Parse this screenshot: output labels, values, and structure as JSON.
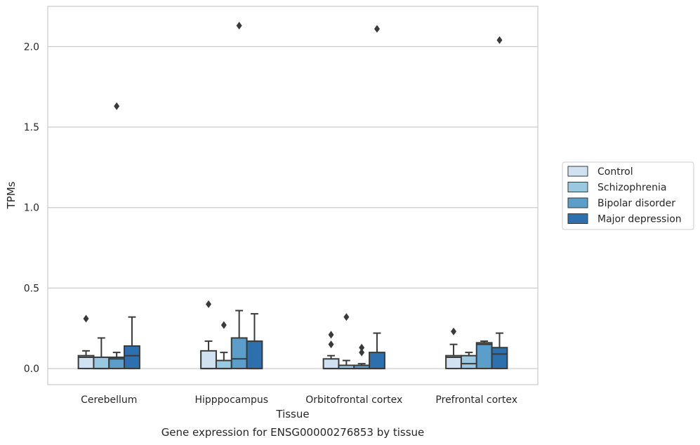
{
  "chart_data": {
    "type": "box",
    "title": "",
    "caption": "Gene expression for ENSG00000276853 by tissue",
    "xlabel": "Tissue",
    "ylabel": "TPMs",
    "ylim": [
      -0.1,
      2.25
    ],
    "yticks": [
      "0.0",
      "0.5",
      "1.0",
      "1.5",
      "2.0"
    ],
    "grid": true,
    "legend_position": "right",
    "categories": [
      "Cerebellum",
      "Hipppocampus",
      "Orbitofrontal cortex",
      "Prefrontal cortex"
    ],
    "series": [
      {
        "name": "Control",
        "color": "#d0e1f2",
        "boxes": [
          {
            "whisker_low": 0.0,
            "q1": 0.0,
            "median": 0.07,
            "q3": 0.08,
            "whisker_high": 0.11,
            "outliers": [
              0.31
            ]
          },
          {
            "whisker_low": 0.0,
            "q1": 0.0,
            "median": 0.0,
            "q3": 0.11,
            "whisker_high": 0.17,
            "outliers": [
              0.4
            ]
          },
          {
            "whisker_low": 0.0,
            "q1": 0.0,
            "median": 0.0,
            "q3": 0.06,
            "whisker_high": 0.08,
            "outliers": [
              0.15,
              0.21
            ]
          },
          {
            "whisker_low": 0.0,
            "q1": 0.0,
            "median": 0.07,
            "q3": 0.08,
            "whisker_high": 0.15,
            "outliers": [
              0.23
            ]
          }
        ]
      },
      {
        "name": "Schizophrenia",
        "color": "#9ac8e0",
        "boxes": [
          {
            "whisker_low": 0.0,
            "q1": 0.0,
            "median": 0.0,
            "q3": 0.07,
            "whisker_high": 0.19,
            "outliers": []
          },
          {
            "whisker_low": 0.0,
            "q1": 0.0,
            "median": 0.0,
            "q3": 0.05,
            "whisker_high": 0.1,
            "outliers": [
              0.27
            ]
          },
          {
            "whisker_low": 0.0,
            "q1": 0.0,
            "median": 0.0,
            "q3": 0.02,
            "whisker_high": 0.05,
            "outliers": [
              0.32
            ]
          },
          {
            "whisker_low": 0.0,
            "q1": 0.0,
            "median": 0.03,
            "q3": 0.08,
            "whisker_high": 0.1,
            "outliers": []
          }
        ]
      },
      {
        "name": "Bipolar disorder",
        "color": "#5a9ec9",
        "boxes": [
          {
            "whisker_low": 0.0,
            "q1": 0.0,
            "median": 0.06,
            "q3": 0.07,
            "whisker_high": 0.1,
            "outliers": [
              1.63
            ]
          },
          {
            "whisker_low": 0.0,
            "q1": 0.0,
            "median": 0.06,
            "q3": 0.19,
            "whisker_high": 0.36,
            "outliers": [
              2.13
            ]
          },
          {
            "whisker_low": 0.0,
            "q1": 0.0,
            "median": 0.0,
            "q3": 0.02,
            "whisker_high": 0.03,
            "outliers": [
              0.1,
              0.13
            ]
          },
          {
            "whisker_low": 0.0,
            "q1": 0.0,
            "median": 0.15,
            "q3": 0.16,
            "whisker_high": 0.17,
            "outliers": []
          }
        ]
      },
      {
        "name": "Major depression",
        "color": "#2e6fad",
        "boxes": [
          {
            "whisker_low": 0.0,
            "q1": 0.0,
            "median": 0.08,
            "q3": 0.14,
            "whisker_high": 0.32,
            "outliers": []
          },
          {
            "whisker_low": 0.0,
            "q1": 0.0,
            "median": 0.0,
            "q3": 0.17,
            "whisker_high": 0.34,
            "outliers": []
          },
          {
            "whisker_low": 0.0,
            "q1": 0.0,
            "median": 0.0,
            "q3": 0.1,
            "whisker_high": 0.22,
            "outliers": [
              2.11
            ]
          },
          {
            "whisker_low": 0.0,
            "q1": 0.0,
            "median": 0.09,
            "q3": 0.13,
            "whisker_high": 0.22,
            "outliers": [
              2.04
            ]
          }
        ]
      }
    ]
  }
}
